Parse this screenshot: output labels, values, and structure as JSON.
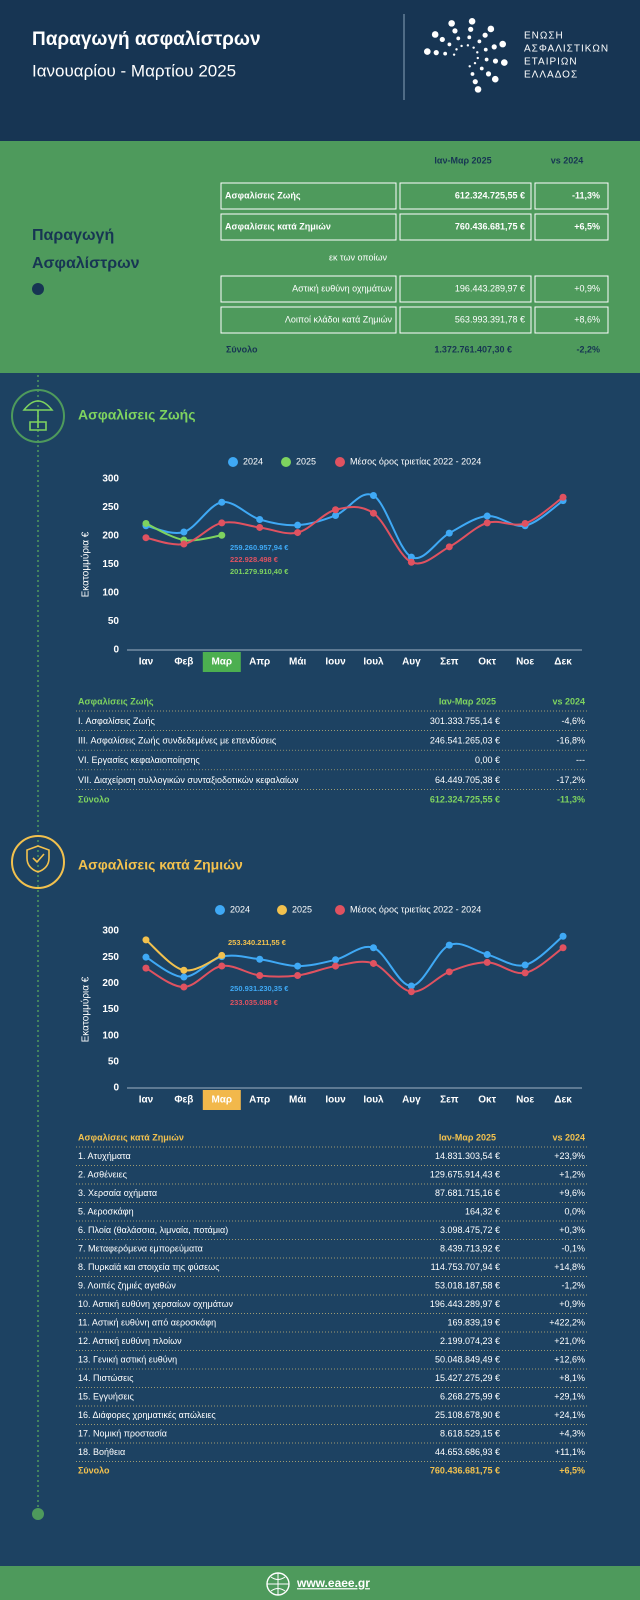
{
  "header": {
    "title": "Παραγωγή ασφαλίστρων",
    "subtitle": "Ιανουαρίου - Μαρτίου 2025",
    "logo_lines": [
      "ΕΝΩΣΗ",
      "ΑΣΦΑΛΙΣΤΙΚΩΝ",
      "ΕΤΑΙΡΙΩΝ",
      "ΕΛΛΑΔΟΣ"
    ]
  },
  "summary": {
    "title_lines": [
      "Παραγωγή",
      "Ασφαλίστρων"
    ],
    "columns": [
      "Ιαν-Μαρ 2025",
      "vs 2024"
    ],
    "rows": [
      {
        "label": "Ασφαλίσεις Ζωής",
        "value": "612.324.725,55 €",
        "change": "-11,3%"
      },
      {
        "label": "Ασφαλίσεις κατά Ζημιών",
        "value": "760.436.681,75 €",
        "change": "+6,5%"
      }
    ],
    "note": "εκ των οποίων",
    "sub_rows": [
      {
        "label": "Αστική ευθύνη οχημάτων",
        "value": "196.443.289,97 €",
        "change": "+0,9%"
      },
      {
        "label": "Λοιποί κλάδοι κατά Ζημιών",
        "value": "563.993.391,78 €",
        "change": "+8,6%"
      }
    ],
    "total": {
      "label": "Σύνολο",
      "value": "1.372.761.407,30 €",
      "change": "-2,2%"
    }
  },
  "chart_data": [
    {
      "type": "line",
      "title": "Ασφαλίσεις Ζωής",
      "y_label": "Εκατομμύρια €",
      "categories": [
        "Ιαν",
        "Φεβ",
        "Μαρ",
        "Απρ",
        "Μάι",
        "Ιουν",
        "Ιουλ",
        "Αυγ",
        "Σεπ",
        "Οκτ",
        "Νοε",
        "Δεκ"
      ],
      "highlight_index": 2,
      "highlight_color": "#4caf50",
      "ylim": [
        0,
        300
      ],
      "yticks": [
        0,
        50,
        100,
        150,
        200,
        250,
        300
      ],
      "grid": false,
      "series": [
        {
          "name": "2024",
          "color": "#3fa9f5",
          "values": [
            218,
            207,
            259.26095794,
            229,
            219,
            236,
            271,
            163,
            205,
            235,
            218,
            262
          ],
          "value_labels": [
            null,
            null,
            "259.260.957,94 €",
            null,
            null,
            null,
            null,
            null,
            null,
            null,
            null,
            null
          ]
        },
        {
          "name": "2025",
          "color": "#7ed35f",
          "values": [
            222,
            193,
            201.2799104,
            null,
            null,
            null,
            null,
            null,
            null,
            null,
            null,
            null
          ],
          "value_labels": [
            null,
            null,
            "201.279.910,40 €",
            null,
            null,
            null,
            null,
            null,
            null,
            null,
            null,
            null
          ]
        },
        {
          "name": "Μέσος όρος τριετίας 2022 - 2024",
          "color": "#e05260",
          "values": [
            197,
            186,
            222.928498,
            215,
            206,
            246,
            240,
            154,
            181,
            223,
            222,
            268
          ],
          "value_labels": [
            null,
            null,
            "222.928.498 €",
            null,
            null,
            null,
            null,
            null,
            null,
            null,
            null,
            null
          ]
        }
      ]
    },
    {
      "type": "line",
      "title": "Ασφαλίσεις κατά Ζημιών",
      "y_label": "Εκατομμύρια €",
      "categories": [
        "Ιαν",
        "Φεβ",
        "Μαρ",
        "Απρ",
        "Μάι",
        "Ιουν",
        "Ιουλ",
        "Αυγ",
        "Σεπ",
        "Οκτ",
        "Νοε",
        "Δεκ"
      ],
      "highlight_index": 2,
      "highlight_color": "#f2b84b",
      "ylim": [
        0,
        300
      ],
      "yticks": [
        0,
        50,
        100,
        150,
        200,
        250,
        300
      ],
      "grid": false,
      "series": [
        {
          "name": "2024",
          "color": "#3fa9f5",
          "values": [
            250,
            212,
            250.93123035,
            246,
            233,
            245,
            268,
            195,
            273,
            255,
            235,
            290
          ],
          "value_labels": [
            null,
            null,
            "250.931.230,35 €",
            null,
            null,
            null,
            null,
            null,
            null,
            null,
            null,
            null
          ]
        },
        {
          "name": "2025",
          "color": "#f2c14e",
          "values": [
            283,
            225,
            253.34021155,
            null,
            null,
            null,
            null,
            null,
            null,
            null,
            null,
            null
          ],
          "value_labels": [
            null,
            null,
            "253.340.211,55 €",
            null,
            null,
            null,
            null,
            null,
            null,
            null,
            null,
            null
          ]
        },
        {
          "name": "Μέσος όρος τριετίας 2022 - 2024",
          "color": "#e05260",
          "values": [
            229,
            193,
            233.035088,
            215,
            215,
            233,
            238,
            184,
            222,
            240,
            220,
            268
          ],
          "value_labels": [
            null,
            null,
            "233.035.088 €",
            null,
            null,
            null,
            null,
            null,
            null,
            null,
            null,
            null
          ]
        }
      ]
    }
  ],
  "tables": [
    {
      "columns": [
        "Ασφαλίσεις Ζωής",
        "Ιαν-Μαρ 2025",
        "vs 2024"
      ],
      "rows": [
        [
          "I. Ασφαλίσεις  Ζωής",
          "301.333.755,14 €",
          "-4,6%"
        ],
        [
          "III. Ασφαλίσεις  Ζωής  συνδεδεμένες με επενδύσεις",
          "246.541.265,03 €",
          "-16,8%"
        ],
        [
          "VI. Εργασίες κεφαλαιοποίησης",
          "0,00 €",
          "---"
        ],
        [
          "VII. Διαχείριση συλλογικών συνταξιοδοτικών κεφαλαίων",
          "64.449.705,38 €",
          "-17,2%"
        ]
      ],
      "total": [
        "Σύνολο",
        "612.324.725,55 €",
        "-11,3%"
      ]
    },
    {
      "columns": [
        "Ασφαλίσεις κατά Ζημιών",
        "Ιαν-Μαρ 2025",
        "vs 2024"
      ],
      "rows": [
        [
          "1. Ατυχήματα",
          "14.831.303,54 €",
          "+23,9%"
        ],
        [
          "2. Ασθένειες",
          "129.675.914,43 €",
          "+1,2%"
        ],
        [
          "3. Χερσαία οχήματα",
          "87.681.715,16 €",
          "+9,6%"
        ],
        [
          "5. Αεροσκάφη",
          "164,32 €",
          "0,0%"
        ],
        [
          "6. Πλοία (θαλάσσια, λιμναία, ποτάμια)",
          "3.098.475,72 €",
          "+0,3%"
        ],
        [
          "7. Μεταφερόμενα εμπορεύματα",
          "8.439.713,92 €",
          "-0,1%"
        ],
        [
          "8. Πυρκαϊά και στοιχεία της φύσεως",
          "114.753.707,94 €",
          "+14,8%"
        ],
        [
          "9. Λοιπές ζημιές αγαθών",
          "53.018.187,58 €",
          "-1,2%"
        ],
        [
          "10. Αστική ευθύνη χερσαίων οχημάτων",
          "196.443.289,97 €",
          "+0,9%"
        ],
        [
          "11. Αστική ευθύνη από αεροσκάφη",
          "169.839,19 €",
          "+422,2%"
        ],
        [
          "12. Αστική ευθύνη πλοίων",
          "2.199.074,23 €",
          "+21,0%"
        ],
        [
          "13. Γενική αστική ευθύνη",
          "50.048.849,49 €",
          "+12,6%"
        ],
        [
          "14. Πιστώσεις",
          "15.427.275,29 €",
          "+8,1%"
        ],
        [
          "15. Εγγυήσεις",
          "6.268.275,99 €",
          "+29,1%"
        ],
        [
          "16. Διάφορες χρηματικές απώλειες",
          "25.108.678,90 €",
          "+24,1%"
        ],
        [
          "17. Νομική προστασία",
          "8.618.529,15 €",
          "+4,3%"
        ],
        [
          "18. Βοήθεια",
          "44.653.686,93 €",
          "+11,1%"
        ]
      ],
      "total": [
        "Σύνολο",
        "760.436.681,75 €",
        "+6,5%"
      ]
    }
  ],
  "footer": {
    "url": "www.eaee.gr"
  }
}
